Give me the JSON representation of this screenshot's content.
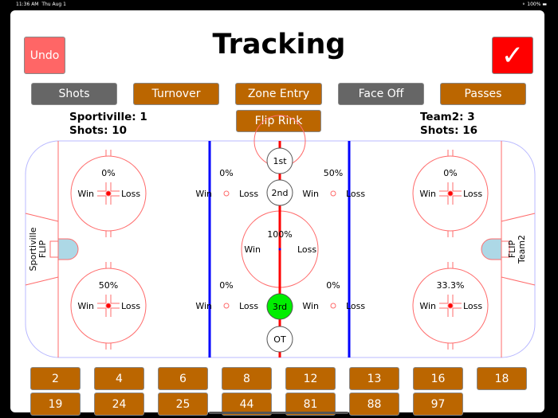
{
  "status_bar": {
    "time": "11:36 AM",
    "date": "Thu Aug 1",
    "battery": "100%"
  },
  "header": {
    "title": "Tracking",
    "undo_label": "Undo",
    "confirm_icon": "checkmark-icon",
    "confirm_label": "✓"
  },
  "modes": [
    {
      "label": "Shots",
      "active": false
    },
    {
      "label": "Turnover",
      "active": true
    },
    {
      "label": "Zone Entry",
      "active": true
    },
    {
      "label": "Face Off",
      "active": false
    },
    {
      "label": "Passes",
      "active": true
    }
  ],
  "flip_rink_label": "Flip Rink",
  "home": {
    "score": "Sportiville: 1",
    "shots": "Shots: 10",
    "side_label": "Sportiville",
    "flip": "FLIP"
  },
  "away": {
    "score": "Team2: 3",
    "shots": "Shots: 16",
    "side_label": "Team2",
    "flip": "FLIP"
  },
  "faceoff": {
    "win": "Win",
    "loss": "Loss",
    "left_top": "0%",
    "left_bottom": "50%",
    "neutral_left_top": "0%",
    "neutral_left_bottom": "0%",
    "center": "100%",
    "neutral_right_top": "50%",
    "neutral_right_bottom": "0%",
    "right_top": "0%",
    "right_bottom": "33.3%"
  },
  "periods": [
    {
      "label": "1st",
      "active": false
    },
    {
      "label": "2nd",
      "active": false
    },
    {
      "label": "3rd",
      "active": true
    },
    {
      "label": "OT",
      "active": false
    }
  ],
  "colors": {
    "accent": "#bb6600",
    "inactive": "#666666",
    "undo": "#ff6666",
    "confirm": "#ff0000",
    "active_period": "#00ee00",
    "blue_line": "#0000ff",
    "red_line": "#ff0000",
    "crease": "#add8e6"
  },
  "players": [
    "2",
    "4",
    "6",
    "8",
    "12",
    "13",
    "16",
    "18",
    "19",
    "24",
    "25",
    "44",
    "81",
    "88",
    "97"
  ]
}
